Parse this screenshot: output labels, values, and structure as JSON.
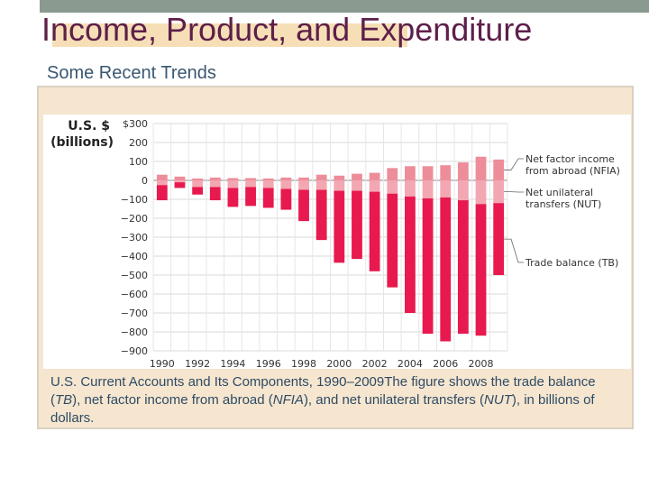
{
  "slide": {
    "title": "Income, Product, and Expenditure",
    "subtitle": "Some Recent Trends"
  },
  "caption": {
    "lead": "U.S. Current Accounts and Its Components, 1990–2009",
    "text_before_tb": "The figure shows the trade balance (",
    "tb": "TB",
    "text_before_nfia": "), net factor income from abroad (",
    "nfia": "NFIA",
    "text_before_nut": "), and net unilateral transfers (",
    "nut": "NUT",
    "text_end": "), in billions of dollars."
  },
  "chart_data": {
    "type": "bar",
    "ylabel_line1": "U.S. $",
    "ylabel_line2": "(billions)",
    "ylim": [
      -900,
      300
    ],
    "yticks": [
      300,
      200,
      100,
      0,
      -100,
      -200,
      -300,
      -400,
      -500,
      -600,
      -700,
      -800,
      -900
    ],
    "ytick_labels": [
      "$300",
      "200",
      "100",
      "0",
      "−100",
      "−200",
      "−300",
      "−400",
      "−500",
      "−600",
      "−700",
      "−800",
      "−900"
    ],
    "x": [
      1990,
      1991,
      1992,
      1993,
      1994,
      1995,
      1996,
      1997,
      1998,
      1999,
      2000,
      2001,
      2002,
      2003,
      2004,
      2005,
      2006,
      2007,
      2008,
      2009
    ],
    "xtick_labels": [
      "1990",
      "1992",
      "1994",
      "1996",
      "1998",
      "2000",
      "2002",
      "2004",
      "2006",
      "2008"
    ],
    "series": [
      {
        "name": "Net factor income from abroad (NFIA)",
        "color": "#ee8d9a",
        "values": [
          30,
          20,
          10,
          15,
          12,
          12,
          10,
          15,
          15,
          30,
          25,
          35,
          40,
          65,
          75,
          75,
          80,
          95,
          125,
          110
        ]
      },
      {
        "name": "Net unilateral transfers (NUT)",
        "color": "#f2a7b2",
        "values": [
          -25,
          -10,
          -35,
          -35,
          -40,
          -35,
          -40,
          -45,
          -50,
          -50,
          -55,
          -55,
          -60,
          -70,
          -85,
          -95,
          -90,
          -105,
          -125,
          -120
        ]
      },
      {
        "name": "Trade balance (TB)",
        "color": "#e8194e",
        "values": [
          -80,
          -30,
          -40,
          -70,
          -100,
          -100,
          -105,
          -110,
          -165,
          -265,
          -380,
          -360,
          -420,
          -495,
          -615,
          -715,
          -760,
          -705,
          -695,
          -380
        ]
      }
    ],
    "legend_placement": "right",
    "legend_lines": [
      [
        "Net factor income",
        "from abroad (NFIA)"
      ],
      [
        "Net unilateral",
        "transfers (NUT)"
      ],
      [
        "Trade balance (TB)"
      ]
    ],
    "gridlines": true
  }
}
